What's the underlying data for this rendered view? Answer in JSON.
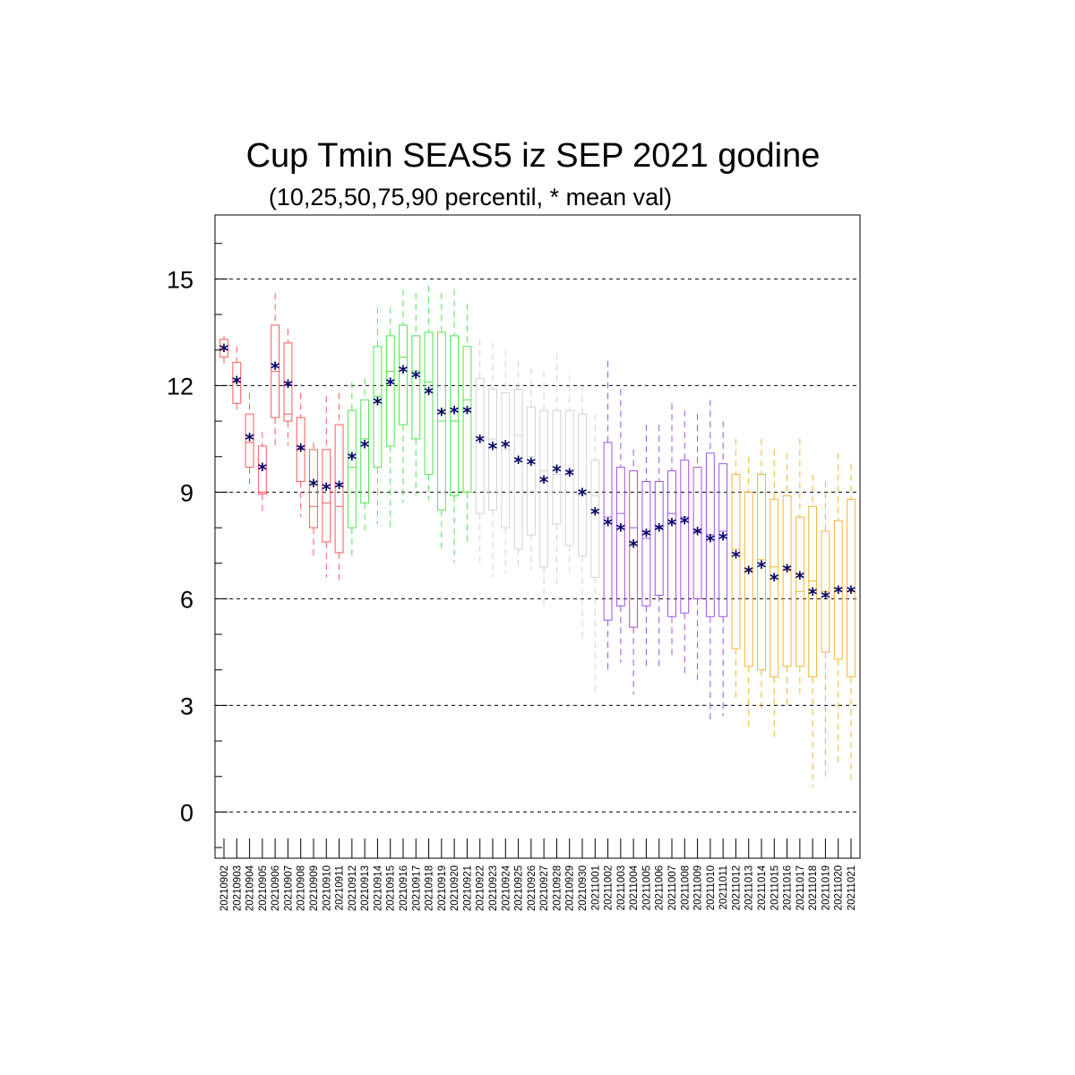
{
  "chart_data": {
    "type": "boxplot",
    "title": "Cup Tmin SEAS5 iz SEP 2021 godine",
    "subtitle": "(10,25,50,75,90 percentil, * mean val)",
    "ylim": [
      -1.3,
      16.8
    ],
    "yticks": [
      0,
      3,
      6,
      9,
      12,
      15
    ],
    "grid": "horizontal dashed at major y ticks",
    "mean_marker": "*",
    "mean_color": "#000066",
    "group_colors": {
      "early_september": "#ff5a5a",
      "mid_september": "#4ee64e",
      "late_september": "#d2d2d2",
      "early_october": "#a050e6",
      "late_october": "#f5b432"
    },
    "categories": [
      "20210902",
      "20210903",
      "20210904",
      "20210905",
      "20210906",
      "20210907",
      "20210908",
      "20210909",
      "20210910",
      "20210911",
      "20210912",
      "20210913",
      "20210914",
      "20210915",
      "20210916",
      "20210917",
      "20210918",
      "20210919",
      "20210920",
      "20210921",
      "20210922",
      "20210923",
      "20210924",
      "20210925",
      "20210926",
      "20210927",
      "20210928",
      "20210929",
      "20210930",
      "20211001",
      "20211002",
      "20211003",
      "20211004",
      "20211005",
      "20211006",
      "20211007",
      "20211008",
      "20211009",
      "20211010",
      "20211011",
      "20211012",
      "20211013",
      "20211014",
      "20211015",
      "20211016",
      "20211017",
      "20211018",
      "20211019",
      "20211020",
      "20211021"
    ],
    "boxes": [
      {
        "date": "20210902",
        "group": "early_september",
        "p10": 12.6,
        "p25": 12.8,
        "p50": 13.0,
        "p75": 13.3,
        "p90": 13.4,
        "mean": 13.0
      },
      {
        "date": "20210903",
        "group": "early_september",
        "p10": 11.2,
        "p25": 11.5,
        "p50": 12.1,
        "p75": 12.65,
        "p90": 13.1,
        "mean": 12.1
      },
      {
        "date": "20210904",
        "group": "early_september",
        "p10": 9.2,
        "p25": 9.7,
        "p50": 10.4,
        "p75": 11.2,
        "p90": 11.8,
        "mean": 10.5
      },
      {
        "date": "20210905",
        "group": "early_september",
        "p10": 8.4,
        "p25": 8.95,
        "p50": 9.0,
        "p75": 10.3,
        "p90": 10.7,
        "mean": 9.65
      },
      {
        "date": "20210906",
        "group": "early_september",
        "p10": 10.2,
        "p25": 11.1,
        "p50": 12.4,
        "p75": 13.7,
        "p90": 14.6,
        "mean": 12.5
      },
      {
        "date": "20210907",
        "group": "early_september",
        "p10": 10.3,
        "p25": 11.0,
        "p50": 11.2,
        "p75": 13.2,
        "p90": 13.6,
        "mean": 12.0
      },
      {
        "date": "20210908",
        "group": "early_september",
        "p10": 8.3,
        "p25": 9.3,
        "p50": 10.2,
        "p75": 11.1,
        "p90": 11.8,
        "mean": 10.2
      },
      {
        "date": "20210909",
        "group": "early_september",
        "p10": 7.1,
        "p25": 8.0,
        "p50": 8.6,
        "p75": 10.2,
        "p90": 10.4,
        "mean": 9.2
      },
      {
        "date": "20210910",
        "group": "early_september",
        "p10": 6.6,
        "p25": 7.6,
        "p50": 8.7,
        "p75": 10.2,
        "p90": 11.7,
        "mean": 9.1
      },
      {
        "date": "20210911",
        "group": "early_september",
        "p10": 6.4,
        "p25": 7.3,
        "p50": 8.6,
        "p75": 10.9,
        "p90": 11.8,
        "mean": 9.15
      },
      {
        "date": "20210912",
        "group": "mid_september",
        "p10": 7.2,
        "p25": 8.0,
        "p50": 9.7,
        "p75": 11.3,
        "p90": 12.1,
        "mean": 9.95
      },
      {
        "date": "20210913",
        "group": "mid_september",
        "p10": 7.8,
        "p25": 8.7,
        "p50": 10.5,
        "p75": 11.6,
        "p90": 12.2,
        "mean": 10.3
      },
      {
        "date": "20210914",
        "group": "mid_september",
        "p10": 8.1,
        "p25": 9.7,
        "p50": 11.7,
        "p75": 13.1,
        "p90": 14.2,
        "mean": 11.5
      },
      {
        "date": "20210915",
        "group": "mid_september",
        "p10": 8.0,
        "p25": 10.3,
        "p50": 12.4,
        "p75": 13.4,
        "p90": 14.2,
        "mean": 12.05
      },
      {
        "date": "20210916",
        "group": "mid_september",
        "p10": 8.7,
        "p25": 10.9,
        "p50": 12.8,
        "p75": 13.7,
        "p90": 14.7,
        "mean": 12.4
      },
      {
        "date": "20210917",
        "group": "mid_september",
        "p10": 8.9,
        "p25": 10.5,
        "p50": 12.4,
        "p75": 13.4,
        "p90": 14.6,
        "mean": 12.25
      },
      {
        "date": "20210918",
        "group": "mid_september",
        "p10": 8.8,
        "p25": 9.5,
        "p50": 12.1,
        "p75": 13.5,
        "p90": 14.8,
        "mean": 11.8
      },
      {
        "date": "20210919",
        "group": "mid_september",
        "p10": 7.4,
        "p25": 8.5,
        "p50": 11.0,
        "p75": 13.5,
        "p90": 14.6,
        "mean": 11.2
      },
      {
        "date": "20210920",
        "group": "mid_september",
        "p10": 7.0,
        "p25": 8.9,
        "p50": 11.0,
        "p75": 13.4,
        "p90": 14.7,
        "mean": 11.25
      },
      {
        "date": "20210921",
        "group": "mid_september",
        "p10": 7.6,
        "p25": 9.0,
        "p50": 11.6,
        "p75": 13.1,
        "p90": 14.3,
        "mean": 11.25
      },
      {
        "date": "20210922",
        "group": "late_september",
        "p10": 6.9,
        "p25": 8.4,
        "p50": 10.4,
        "p75": 12.2,
        "p90": 13.3,
        "mean": 10.45
      },
      {
        "date": "20210923",
        "group": "late_september",
        "p10": 6.6,
        "p25": 8.5,
        "p50": 10.5,
        "p75": 11.9,
        "p90": 13.2,
        "mean": 10.25
      },
      {
        "date": "20210924",
        "group": "late_september",
        "p10": 6.7,
        "p25": 8.0,
        "p50": 10.2,
        "p75": 11.8,
        "p90": 13.0,
        "mean": 10.3
      },
      {
        "date": "20210925",
        "group": "late_september",
        "p10": 6.9,
        "p25": 7.4,
        "p50": 10.6,
        "p75": 11.9,
        "p90": 12.7,
        "mean": 9.85
      },
      {
        "date": "20210926",
        "group": "late_september",
        "p10": 6.8,
        "p25": 7.8,
        "p50": 10.0,
        "p75": 11.4,
        "p90": 12.5,
        "mean": 9.8
      },
      {
        "date": "20210927",
        "group": "late_september",
        "p10": 5.8,
        "p25": 6.9,
        "p50": 9.6,
        "p75": 11.3,
        "p90": 12.4,
        "mean": 9.3
      },
      {
        "date": "20210928",
        "group": "late_september",
        "p10": 6.4,
        "p25": 8.1,
        "p50": 9.5,
        "p75": 11.3,
        "p90": 12.9,
        "mean": 9.6
      },
      {
        "date": "20210929",
        "group": "late_september",
        "p10": 6.7,
        "p25": 7.5,
        "p50": 9.6,
        "p75": 11.3,
        "p90": 12.3,
        "mean": 9.5
      },
      {
        "date": "20210930",
        "group": "late_september",
        "p10": 4.9,
        "p25": 7.2,
        "p50": 8.9,
        "p75": 11.2,
        "p90": 12.0,
        "mean": 8.95
      },
      {
        "date": "20211001",
        "group": "late_september",
        "p10": 3.4,
        "p25": 6.6,
        "p50": 8.9,
        "p75": 9.9,
        "p90": 11.2,
        "mean": 8.4
      },
      {
        "date": "20211002",
        "group": "early_october",
        "p10": 4.0,
        "p25": 5.4,
        "p50": 8.3,
        "p75": 10.4,
        "p90": 12.7,
        "mean": 8.1
      },
      {
        "date": "20211003",
        "group": "early_october",
        "p10": 4.2,
        "p25": 5.8,
        "p50": 8.4,
        "p75": 9.7,
        "p90": 11.9,
        "mean": 7.95
      },
      {
        "date": "20211004",
        "group": "early_october",
        "p10": 3.3,
        "p25": 5.2,
        "p50": 8.0,
        "p75": 9.6,
        "p90": 10.2,
        "mean": 7.5
      },
      {
        "date": "20211005",
        "group": "early_october",
        "p10": 4.0,
        "p25": 5.8,
        "p50": 7.7,
        "p75": 9.3,
        "p90": 10.9,
        "mean": 7.8
      },
      {
        "date": "20211006",
        "group": "early_october",
        "p10": 4.1,
        "p25": 6.1,
        "p50": 8.0,
        "p75": 9.3,
        "p90": 10.9,
        "mean": 7.95
      },
      {
        "date": "20211007",
        "group": "early_october",
        "p10": 4.3,
        "p25": 5.5,
        "p50": 8.4,
        "p75": 9.6,
        "p90": 11.5,
        "mean": 8.1
      },
      {
        "date": "20211008",
        "group": "early_october",
        "p10": 3.9,
        "p25": 5.6,
        "p50": 8.3,
        "p75": 9.9,
        "p90": 11.3,
        "mean": 8.15
      },
      {
        "date": "20211009",
        "group": "early_october",
        "p10": 3.6,
        "p25": 6.0,
        "p50": 7.9,
        "p75": 9.7,
        "p90": 11.2,
        "mean": 7.85
      },
      {
        "date": "20211010",
        "group": "early_october",
        "p10": 2.6,
        "p25": 5.5,
        "p50": 7.8,
        "p75": 10.1,
        "p90": 11.6,
        "mean": 7.65
      },
      {
        "date": "20211011",
        "group": "early_october",
        "p10": 2.7,
        "p25": 5.5,
        "p50": 7.9,
        "p75": 9.8,
        "p90": 11.0,
        "mean": 7.7
      },
      {
        "date": "20211012",
        "group": "late_october",
        "p10": 3.2,
        "p25": 4.6,
        "p50": 7.4,
        "p75": 9.5,
        "p90": 10.5,
        "mean": 7.2
      },
      {
        "date": "20211013",
        "group": "late_october",
        "p10": 2.3,
        "p25": 4.1,
        "p50": 6.8,
        "p75": 9.0,
        "p90": 10.0,
        "mean": 6.75
      },
      {
        "date": "20211014",
        "group": "late_october",
        "p10": 2.8,
        "p25": 4.0,
        "p50": 7.1,
        "p75": 9.5,
        "p90": 10.5,
        "mean": 6.9
      },
      {
        "date": "20211015",
        "group": "late_october",
        "p10": 2.1,
        "p25": 3.8,
        "p50": 6.9,
        "p75": 8.8,
        "p90": 10.2,
        "mean": 6.55
      },
      {
        "date": "20211016",
        "group": "late_october",
        "p10": 2.9,
        "p25": 4.1,
        "p50": 6.8,
        "p75": 8.9,
        "p90": 10.1,
        "mean": 6.8
      },
      {
        "date": "20211017",
        "group": "late_october",
        "p10": 3.2,
        "p25": 4.1,
        "p50": 6.2,
        "p75": 8.3,
        "p90": 10.5,
        "mean": 6.6
      },
      {
        "date": "20211018",
        "group": "late_october",
        "p10": 0.7,
        "p25": 3.8,
        "p50": 6.5,
        "p75": 8.6,
        "p90": 9.5,
        "mean": 6.15
      },
      {
        "date": "20211019",
        "group": "late_october",
        "p10": 1.0,
        "p25": 4.5,
        "p50": 6.2,
        "p75": 7.9,
        "p90": 9.3,
        "mean": 6.05
      },
      {
        "date": "20211020",
        "group": "late_october",
        "p10": 1.4,
        "p25": 4.3,
        "p50": 6.3,
        "p75": 8.2,
        "p90": 10.1,
        "mean": 6.2
      },
      {
        "date": "20211021",
        "group": "late_october",
        "p10": 0.9,
        "p25": 3.8,
        "p50": 6.2,
        "p75": 8.8,
        "p90": 9.8,
        "mean": 6.2
      }
    ]
  }
}
